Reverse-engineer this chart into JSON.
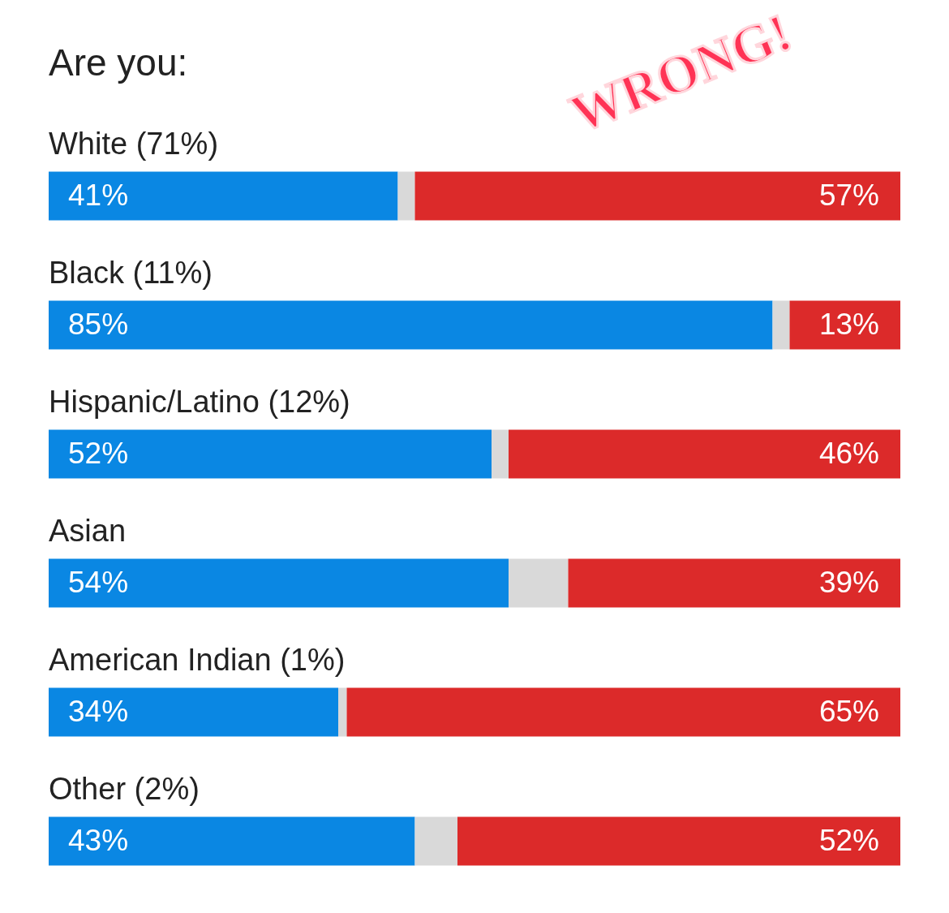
{
  "chart_data": {
    "type": "bar",
    "title": "Are you:",
    "orientation": "horizontal",
    "stacked": true,
    "legend": false,
    "tick_labels": false,
    "categories": [
      "White (71%)",
      "Black (11%)",
      "Hispanic/Latino (12%)",
      "Asian",
      "American Indian (1%)",
      "Other (2%)"
    ],
    "series": [
      {
        "color": "#0a87e3",
        "values": [
          41,
          85,
          52,
          54,
          34,
          43
        ],
        "value_labels": [
          "41%",
          "85%",
          "52%",
          "54%",
          "34%",
          "43%"
        ]
      },
      {
        "color": "#d9d9d9",
        "values": [
          2,
          2,
          2,
          7,
          1,
          5
        ],
        "value_labels": [
          null,
          null,
          null,
          null,
          null,
          null
        ]
      },
      {
        "color": "#dc2a2a",
        "values": [
          57,
          13,
          46,
          39,
          65,
          52
        ],
        "value_labels": [
          "57%",
          "13%",
          "46%",
          "39%",
          "65%",
          "52%"
        ]
      }
    ],
    "annotations": [
      "WRONG!"
    ]
  }
}
